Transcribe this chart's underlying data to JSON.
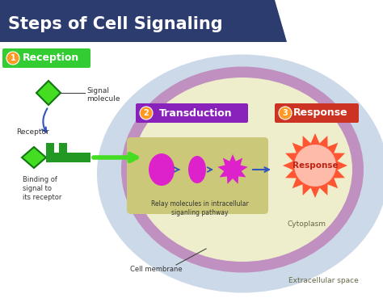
{
  "title": "Steps of Cell Signaling",
  "title_color": "#ffffff",
  "title_bg": "#2d3c6e",
  "bg_color": "#ffffff",
  "outer_blob_color": "#ccd9e8",
  "cell_membrane_color": "#c090c0",
  "cytoplasm_color": "#eeeecc",
  "relay_box_color": "#ccc87a",
  "step1_label": "Reception",
  "step1_bg": "#33cc33",
  "step2_label": "Transduction",
  "step2_bg": "#8822bb",
  "step3_label": "Response",
  "step3_bg": "#cc3322",
  "signal_molecule_color": "#44dd22",
  "receptor_color": "#229922",
  "relay_molecule_color": "#dd22cc",
  "response_fill": "#ffbbaa",
  "response_spike_color": "#ff5533",
  "arrow_color": "#3355bb",
  "text_color": "#333333",
  "step_num_bg": "#ff9922",
  "annotations": {
    "signal_molecule": "Signal\nmolecule",
    "receptor": "Receptor",
    "binding": "Binding of\nsignal to\nits receptor",
    "relay": "Relay molecules in intracellular\nsiganling pathway",
    "cytoplasm": "Cytoplasm",
    "cell_membrane": "Cell membrane",
    "extracellular": "Extracellular space",
    "response": "Response"
  }
}
